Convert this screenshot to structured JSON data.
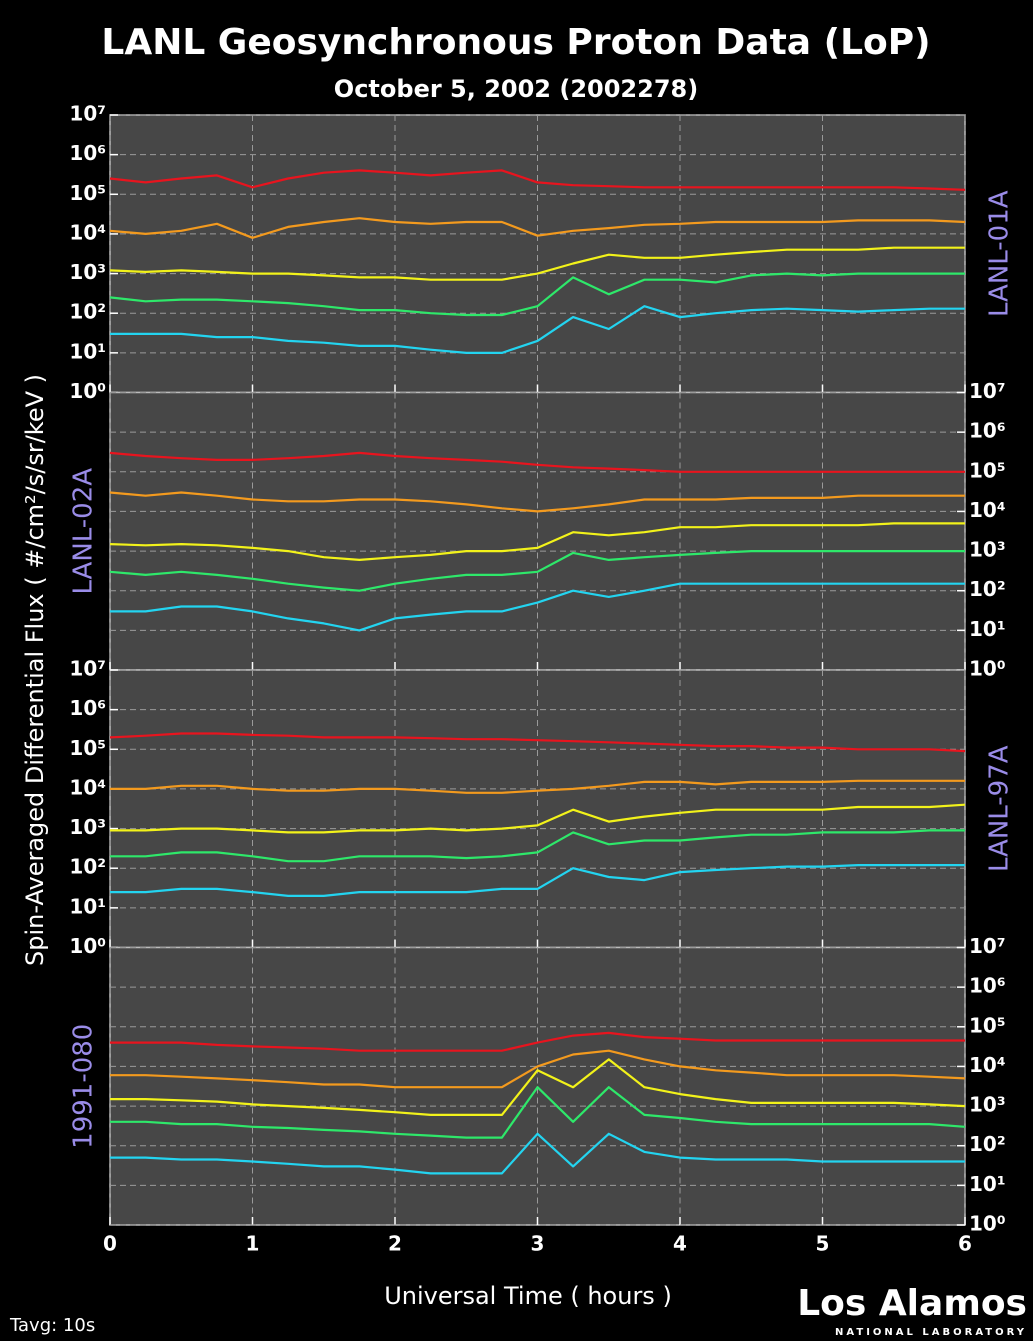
{
  "title": "LANL Geosynchronous Proton Data (LoP)",
  "subtitle": "October  5, 2002 (2002278)",
  "y_label": "Spin-Averaged Differential Flux  ( #/cm²/s/sr/keV )",
  "x_label": "Universal Time ( hours )",
  "averaging": "Tavg: 10s",
  "logo": {
    "name": "Los Alamos",
    "sub": "NATIONAL LABORATORY"
  },
  "chart_data": [
    {
      "type": "line",
      "label": "LANL-01A",
      "label_side": "right",
      "y_axis_side": "left",
      "log_y": true,
      "grid": true,
      "x": [
        0,
        0.25,
        0.5,
        0.75,
        1,
        1.25,
        1.5,
        1.75,
        2,
        2.25,
        2.5,
        2.75,
        3,
        3.25,
        3.5,
        3.75,
        4,
        4.25,
        4.5,
        4.75,
        5,
        5.25,
        5.5,
        5.75,
        6
      ],
      "xlim": [
        0,
        6
      ],
      "xticks": [
        0,
        1,
        2,
        3,
        4,
        5,
        6
      ],
      "ylim": [
        1,
        10000000
      ],
      "yticks": [
        {
          "value": 1,
          "label": "10⁰"
        },
        {
          "value": 10,
          "label": "10¹"
        },
        {
          "value": 100,
          "label": "10²"
        },
        {
          "value": 1000,
          "label": "10³"
        },
        {
          "value": 10000,
          "label": "10⁴"
        },
        {
          "value": 100000,
          "label": "10⁵"
        },
        {
          "value": 1000000,
          "label": "10⁶"
        },
        {
          "value": 10000000,
          "label": "10⁷"
        }
      ],
      "series": [
        {
          "color": "#e8141e",
          "values": [
            250000,
            200000,
            250000,
            300000,
            150000,
            250000,
            350000,
            400000,
            350000,
            300000,
            350000,
            400000,
            200000,
            170000,
            160000,
            150000,
            150000,
            150000,
            150000,
            150000,
            150000,
            150000,
            150000,
            140000,
            130000
          ]
        },
        {
          "color": "#f39a1e",
          "values": [
            12000,
            10000,
            12000,
            18000,
            8000,
            15000,
            20000,
            25000,
            20000,
            18000,
            20000,
            20000,
            9000,
            12000,
            14000,
            17000,
            18000,
            20000,
            20000,
            20000,
            20000,
            22000,
            22000,
            22000,
            20000
          ]
        },
        {
          "color": "#f2f21a",
          "values": [
            1200,
            1100,
            1200,
            1100,
            1000,
            1000,
            900,
            800,
            800,
            700,
            700,
            700,
            1000,
            1800,
            3000,
            2500,
            2500,
            3000,
            3500,
            4000,
            4000,
            4000,
            4500,
            4500,
            4500
          ]
        },
        {
          "color": "#2ee86a",
          "values": [
            250,
            200,
            220,
            220,
            200,
            180,
            150,
            120,
            120,
            100,
            90,
            90,
            150,
            800,
            300,
            700,
            700,
            600,
            900,
            1000,
            900,
            1000,
            1000,
            1000,
            1000
          ]
        },
        {
          "color": "#23d4f0",
          "values": [
            30,
            30,
            30,
            25,
            25,
            20,
            18,
            15,
            15,
            12,
            10,
            10,
            20,
            80,
            40,
            150,
            80,
            100,
            120,
            130,
            120,
            110,
            120,
            130,
            130
          ]
        }
      ]
    },
    {
      "type": "line",
      "label": "LANL-02A",
      "label_side": "left",
      "y_axis_side": "right",
      "log_y": true,
      "grid": true,
      "x": [
        0,
        0.25,
        0.5,
        0.75,
        1,
        1.25,
        1.5,
        1.75,
        2,
        2.25,
        2.5,
        2.75,
        3,
        3.25,
        3.5,
        3.75,
        4,
        4.25,
        4.5,
        4.75,
        5,
        5.25,
        5.5,
        5.75,
        6
      ],
      "xlim": [
        0,
        6
      ],
      "xticks": [
        0,
        1,
        2,
        3,
        4,
        5,
        6
      ],
      "ylim": [
        1,
        10000000
      ],
      "yticks": [
        {
          "value": 1,
          "label": "10⁰"
        },
        {
          "value": 10,
          "label": "10¹"
        },
        {
          "value": 100,
          "label": "10²"
        },
        {
          "value": 1000,
          "label": "10³"
        },
        {
          "value": 10000,
          "label": "10⁴"
        },
        {
          "value": 100000,
          "label": "10⁵"
        },
        {
          "value": 1000000,
          "label": "10⁶"
        },
        {
          "value": 10000000,
          "label": "10⁷"
        }
      ],
      "series": [
        {
          "color": "#e8141e",
          "values": [
            300000,
            250000,
            220000,
            200000,
            200000,
            220000,
            250000,
            300000,
            250000,
            220000,
            200000,
            180000,
            150000,
            130000,
            120000,
            110000,
            100000,
            100000,
            100000,
            100000,
            100000,
            100000,
            100000,
            100000,
            100000
          ]
        },
        {
          "color": "#f39a1e",
          "values": [
            30000,
            25000,
            30000,
            25000,
            20000,
            18000,
            18000,
            20000,
            20000,
            18000,
            15000,
            12000,
            10000,
            12000,
            15000,
            20000,
            20000,
            20000,
            22000,
            22000,
            22000,
            25000,
            25000,
            25000,
            25000
          ]
        },
        {
          "color": "#f2f21a",
          "values": [
            1500,
            1400,
            1500,
            1400,
            1200,
            1000,
            700,
            600,
            700,
            800,
            1000,
            1000,
            1200,
            3000,
            2500,
            3000,
            4000,
            4000,
            4500,
            4500,
            4500,
            4500,
            5000,
            5000,
            5000
          ]
        },
        {
          "color": "#2ee86a",
          "values": [
            300,
            250,
            300,
            250,
            200,
            150,
            120,
            100,
            150,
            200,
            250,
            250,
            300,
            900,
            600,
            700,
            800,
            900,
            1000,
            1000,
            1000,
            1000,
            1000,
            1000,
            1000
          ]
        },
        {
          "color": "#23d4f0",
          "values": [
            30,
            30,
            40,
            40,
            30,
            20,
            15,
            10,
            20,
            25,
            30,
            30,
            50,
            100,
            70,
            100,
            150,
            150,
            150,
            150,
            150,
            150,
            150,
            150,
            150
          ]
        }
      ]
    },
    {
      "type": "line",
      "label": "LANL-97A",
      "label_side": "right",
      "y_axis_side": "left",
      "log_y": true,
      "grid": true,
      "x": [
        0,
        0.25,
        0.5,
        0.75,
        1,
        1.25,
        1.5,
        1.75,
        2,
        2.25,
        2.5,
        2.75,
        3,
        3.25,
        3.5,
        3.75,
        4,
        4.25,
        4.5,
        4.75,
        5,
        5.25,
        5.5,
        5.75,
        6
      ],
      "xlim": [
        0,
        6
      ],
      "xticks": [
        0,
        1,
        2,
        3,
        4,
        5,
        6
      ],
      "ylim": [
        1,
        10000000
      ],
      "yticks": [
        {
          "value": 1,
          "label": "10⁰"
        },
        {
          "value": 10,
          "label": "10¹"
        },
        {
          "value": 100,
          "label": "10²"
        },
        {
          "value": 1000,
          "label": "10³"
        },
        {
          "value": 10000,
          "label": "10⁴"
        },
        {
          "value": 100000,
          "label": "10⁵"
        },
        {
          "value": 1000000,
          "label": "10⁶"
        },
        {
          "value": 10000000,
          "label": "10⁷"
        }
      ],
      "series": [
        {
          "color": "#e8141e",
          "values": [
            200000,
            220000,
            250000,
            250000,
            230000,
            220000,
            200000,
            200000,
            200000,
            190000,
            180000,
            180000,
            170000,
            160000,
            150000,
            140000,
            130000,
            120000,
            120000,
            110000,
            110000,
            100000,
            100000,
            100000,
            90000
          ]
        },
        {
          "color": "#f39a1e",
          "values": [
            10000,
            10000,
            12000,
            12000,
            10000,
            9000,
            9000,
            10000,
            10000,
            9000,
            8000,
            8000,
            9000,
            10000,
            12000,
            15000,
            15000,
            13000,
            15000,
            15000,
            15000,
            16000,
            16000,
            16000,
            16000
          ]
        },
        {
          "color": "#f2f21a",
          "values": [
            900,
            900,
            1000,
            1000,
            900,
            800,
            800,
            900,
            900,
            1000,
            900,
            1000,
            1200,
            3000,
            1500,
            2000,
            2500,
            3000,
            3000,
            3000,
            3000,
            3500,
            3500,
            3500,
            4000
          ]
        },
        {
          "color": "#2ee86a",
          "values": [
            200,
            200,
            250,
            250,
            200,
            150,
            150,
            200,
            200,
            200,
            180,
            200,
            250,
            800,
            400,
            500,
            500,
            600,
            700,
            700,
            800,
            800,
            800,
            900,
            900
          ]
        },
        {
          "color": "#23d4f0",
          "values": [
            25,
            25,
            30,
            30,
            25,
            20,
            20,
            25,
            25,
            25,
            25,
            30,
            30,
            100,
            60,
            50,
            80,
            90,
            100,
            110,
            110,
            120,
            120,
            120,
            120
          ]
        }
      ]
    },
    {
      "type": "line",
      "label": "1991-080",
      "label_side": "left",
      "y_axis_side": "right",
      "log_y": true,
      "grid": true,
      "x": [
        0,
        0.25,
        0.5,
        0.75,
        1,
        1.25,
        1.5,
        1.75,
        2,
        2.25,
        2.5,
        2.75,
        3,
        3.25,
        3.5,
        3.75,
        4,
        4.25,
        4.5,
        4.75,
        5,
        5.25,
        5.5,
        5.75,
        6
      ],
      "xlim": [
        0,
        6
      ],
      "xticks": [
        0,
        1,
        2,
        3,
        4,
        5,
        6
      ],
      "ylim": [
        1,
        10000000
      ],
      "yticks": [
        {
          "value": 1,
          "label": "10⁰"
        },
        {
          "value": 10,
          "label": "10¹"
        },
        {
          "value": 100,
          "label": "10²"
        },
        {
          "value": 1000,
          "label": "10³"
        },
        {
          "value": 10000,
          "label": "10⁴"
        },
        {
          "value": 100000,
          "label": "10⁵"
        },
        {
          "value": 1000000,
          "label": "10⁶"
        },
        {
          "value": 10000000,
          "label": "10⁷"
        }
      ],
      "series": [
        {
          "color": "#e8141e",
          "values": [
            40000,
            40000,
            40000,
            35000,
            32000,
            30000,
            28000,
            25000,
            25000,
            25000,
            25000,
            25000,
            40000,
            60000,
            70000,
            55000,
            50000,
            45000,
            45000,
            45000,
            45000,
            45000,
            45000,
            45000,
            45000
          ]
        },
        {
          "color": "#f39a1e",
          "values": [
            6000,
            6000,
            5500,
            5000,
            4500,
            4000,
            3500,
            3500,
            3000,
            3000,
            3000,
            3000,
            10000,
            20000,
            25000,
            15000,
            10000,
            8000,
            7000,
            6000,
            6000,
            6000,
            6000,
            5500,
            5000
          ]
        },
        {
          "color": "#f2f21a",
          "values": [
            1500,
            1500,
            1400,
            1300,
            1100,
            1000,
            900,
            800,
            700,
            600,
            600,
            600,
            8000,
            3000,
            15000,
            3000,
            2000,
            1500,
            1200,
            1200,
            1200,
            1200,
            1200,
            1100,
            1000
          ]
        },
        {
          "color": "#2ee86a",
          "values": [
            400,
            400,
            350,
            350,
            300,
            280,
            250,
            230,
            200,
            180,
            160,
            160,
            3000,
            400,
            3000,
            600,
            500,
            400,
            350,
            350,
            350,
            350,
            350,
            350,
            300
          ]
        },
        {
          "color": "#23d4f0",
          "values": [
            50,
            50,
            45,
            45,
            40,
            35,
            30,
            30,
            25,
            20,
            20,
            20,
            200,
            30,
            200,
            70,
            50,
            45,
            45,
            45,
            40,
            40,
            40,
            40,
            40
          ]
        }
      ]
    }
  ]
}
